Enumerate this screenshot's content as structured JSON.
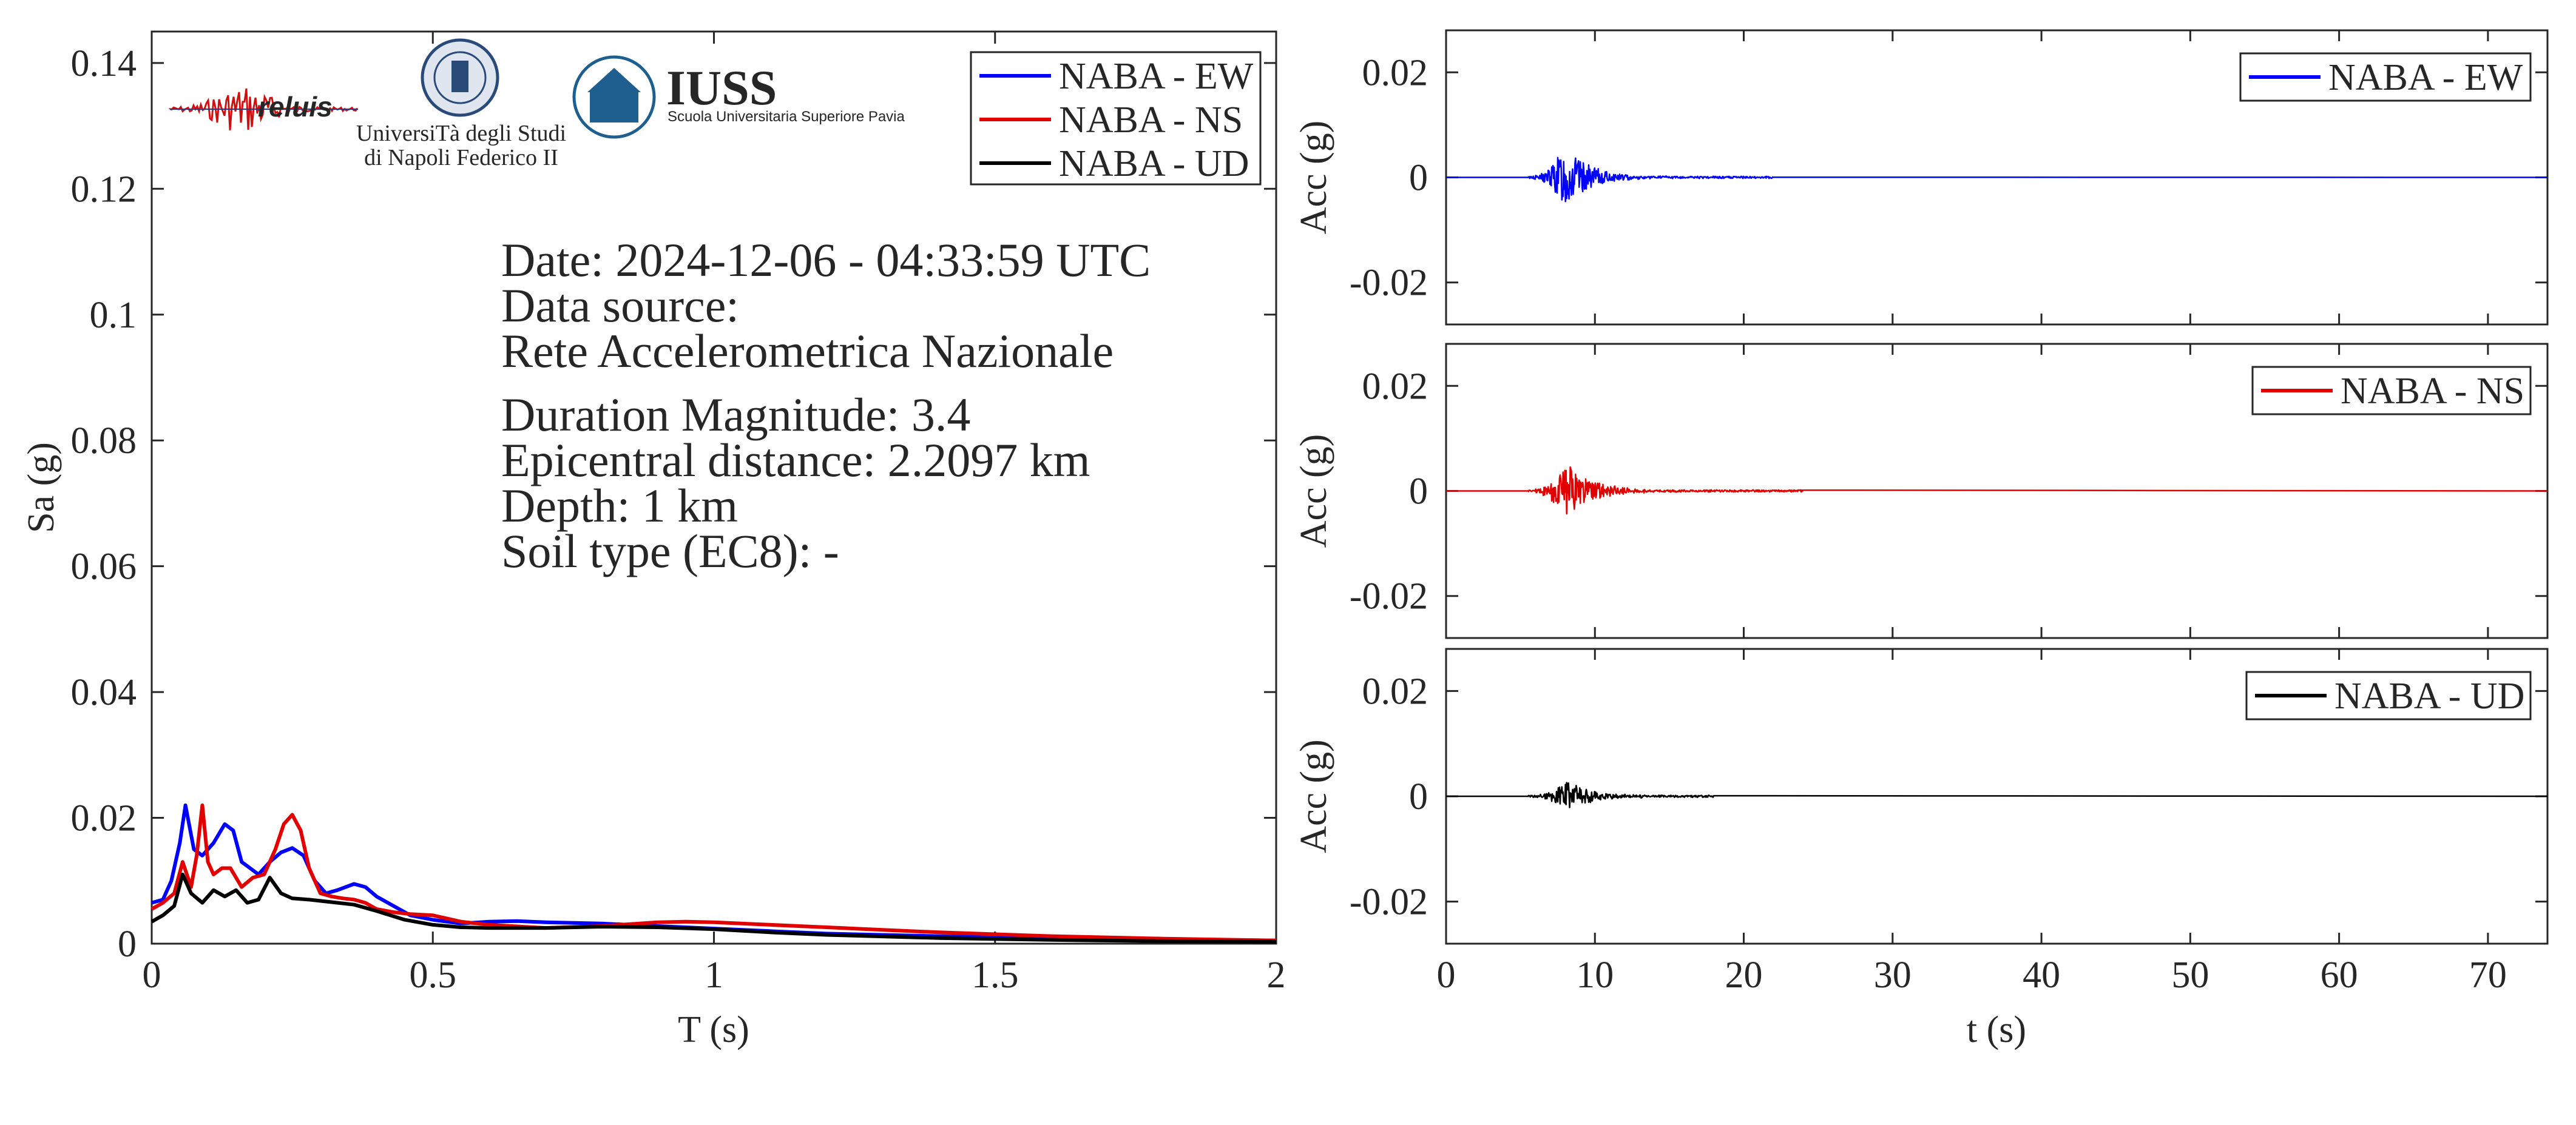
{
  "colors": {
    "EW": "#0000ff",
    "NS": "#e00000",
    "UD": "#000000",
    "axis": "#262626"
  },
  "info": {
    "lines": [
      "Date: 2024-12-06 - 04:33:59 UTC",
      "Data source:",
      "Rete Accelerometrica Nazionale",
      "Duration Magnitude: 3.4",
      "Epicentral distance: 2.2097 km",
      "Depth: 1 km",
      "Soil type (EC8): -"
    ]
  },
  "logos": {
    "reluis": "reluis",
    "unina_line1": "UniversiTà degli Studi",
    "unina_line2": "di Napoli Federico II",
    "iuss_title": "IUSS",
    "iuss_subtitle": "Scuola Universitaria Superiore Pavia"
  },
  "chart_data": [
    {
      "type": "line",
      "xlabel": "T (s)",
      "ylabel": "Sa (g)",
      "xlim": [
        0,
        2
      ],
      "ylim": [
        0,
        0.145
      ],
      "xticks": [
        0,
        0.5,
        1,
        1.5,
        2
      ],
      "xtick_labels": [
        "0",
        "0.5",
        "1",
        "1.5",
        "2"
      ],
      "yticks": [
        0,
        0.02,
        0.04,
        0.06,
        0.08,
        0.1,
        0.12,
        0.14
      ],
      "ytick_labels": [
        "0",
        "0.02",
        "0.04",
        "0.06",
        "0.08",
        "0.1",
        "0.12",
        "0.14"
      ],
      "grid": false,
      "legend": "top-right",
      "series": [
        {
          "name": "NABA - EW",
          "key": "EW",
          "x": [
            0,
            0.02,
            0.035,
            0.05,
            0.06,
            0.075,
            0.09,
            0.11,
            0.13,
            0.145,
            0.16,
            0.175,
            0.19,
            0.21,
            0.23,
            0.25,
            0.27,
            0.29,
            0.31,
            0.33,
            0.36,
            0.38,
            0.4,
            0.43,
            0.46,
            0.5,
            0.55,
            0.6,
            0.65,
            0.7,
            0.75,
            0.8,
            0.85,
            0.9,
            1.0,
            1.1,
            1.2,
            1.4,
            1.6,
            1.8,
            2.0
          ],
          "y": [
            0.0065,
            0.007,
            0.01,
            0.016,
            0.022,
            0.015,
            0.014,
            0.016,
            0.019,
            0.018,
            0.013,
            0.012,
            0.011,
            0.013,
            0.0145,
            0.0152,
            0.014,
            0.01,
            0.008,
            0.0085,
            0.0095,
            0.009,
            0.0075,
            0.006,
            0.0045,
            0.0038,
            0.0032,
            0.0035,
            0.0036,
            0.0034,
            0.0033,
            0.0032,
            0.003,
            0.0028,
            0.0024,
            0.002,
            0.0016,
            0.0012,
            0.0009,
            0.0007,
            0.0005
          ]
        },
        {
          "name": "NABA - NS",
          "key": "NS",
          "x": [
            0,
            0.02,
            0.04,
            0.055,
            0.07,
            0.08,
            0.09,
            0.1,
            0.11,
            0.125,
            0.14,
            0.16,
            0.18,
            0.2,
            0.22,
            0.235,
            0.25,
            0.265,
            0.28,
            0.3,
            0.32,
            0.34,
            0.36,
            0.38,
            0.4,
            0.43,
            0.46,
            0.5,
            0.55,
            0.6,
            0.7,
            0.8,
            0.9,
            0.95,
            1.0,
            1.1,
            1.2,
            1.3,
            1.4,
            1.6,
            1.8,
            2.0
          ],
          "y": [
            0.0055,
            0.0065,
            0.008,
            0.013,
            0.009,
            0.014,
            0.022,
            0.013,
            0.011,
            0.012,
            0.012,
            0.009,
            0.0105,
            0.011,
            0.015,
            0.019,
            0.0205,
            0.018,
            0.012,
            0.008,
            0.0075,
            0.0072,
            0.007,
            0.0065,
            0.0055,
            0.005,
            0.0047,
            0.0045,
            0.0035,
            0.003,
            0.0025,
            0.0028,
            0.0034,
            0.0035,
            0.0034,
            0.003,
            0.0026,
            0.0022,
            0.0018,
            0.0012,
            0.0008,
            0.0005
          ]
        },
        {
          "name": "NABA - UD",
          "key": "UD",
          "x": [
            0,
            0.02,
            0.04,
            0.055,
            0.07,
            0.09,
            0.11,
            0.13,
            0.15,
            0.17,
            0.19,
            0.21,
            0.23,
            0.25,
            0.28,
            0.32,
            0.36,
            0.4,
            0.45,
            0.5,
            0.55,
            0.6,
            0.7,
            0.8,
            0.9,
            1.0,
            1.1,
            1.2,
            1.4,
            1.6,
            1.8,
            2.0
          ],
          "y": [
            0.0035,
            0.0045,
            0.006,
            0.011,
            0.008,
            0.0065,
            0.0085,
            0.0075,
            0.0085,
            0.0065,
            0.007,
            0.0105,
            0.008,
            0.0072,
            0.007,
            0.0066,
            0.0062,
            0.0052,
            0.0038,
            0.003,
            0.0026,
            0.0025,
            0.0025,
            0.0027,
            0.0026,
            0.0023,
            0.0018,
            0.0014,
            0.0009,
            0.0006,
            0.0004,
            0.0003
          ]
        }
      ]
    },
    {
      "type": "line",
      "ylabel": "Acc (g)",
      "xlim": [
        0,
        74
      ],
      "ylim": [
        -0.028,
        0.028
      ],
      "yticks": [
        -0.02,
        0,
        0.02
      ],
      "ytick_labels": [
        "-0.02",
        "0",
        "0.02"
      ],
      "legend": "top-right",
      "series": [
        {
          "name": "NABA - EW",
          "key": "EW",
          "peak": 0.006,
          "t_start": 5.5,
          "t_peak": 8.0,
          "t_end": 22
        }
      ]
    },
    {
      "type": "line",
      "ylabel": "Acc (g)",
      "xlim": [
        0,
        74
      ],
      "ylim": [
        -0.028,
        0.028
      ],
      "yticks": [
        -0.02,
        0,
        0.02
      ],
      "ytick_labels": [
        "-0.02",
        "0",
        "0.02"
      ],
      "legend": "top-right",
      "series": [
        {
          "name": "NABA - NS",
          "key": "NS",
          "peak": 0.0055,
          "t_start": 5.5,
          "t_peak": 8.2,
          "t_end": 24
        }
      ]
    },
    {
      "type": "line",
      "xlabel": "t (s)",
      "ylabel": "Acc (g)",
      "xlim": [
        0,
        74
      ],
      "ylim": [
        -0.028,
        0.028
      ],
      "xticks": [
        0,
        10,
        20,
        30,
        40,
        50,
        60,
        70
      ],
      "xtick_labels": [
        "0",
        "10",
        "20",
        "30",
        "40",
        "50",
        "60",
        "70"
      ],
      "yticks": [
        -0.02,
        0,
        0.02
      ],
      "ytick_labels": [
        "-0.02",
        "0",
        "0.02"
      ],
      "legend": "top-right",
      "series": [
        {
          "name": "NABA - UD",
          "key": "UD",
          "peak": 0.003,
          "t_start": 5.5,
          "t_peak": 8.0,
          "t_end": 18
        }
      ]
    }
  ]
}
